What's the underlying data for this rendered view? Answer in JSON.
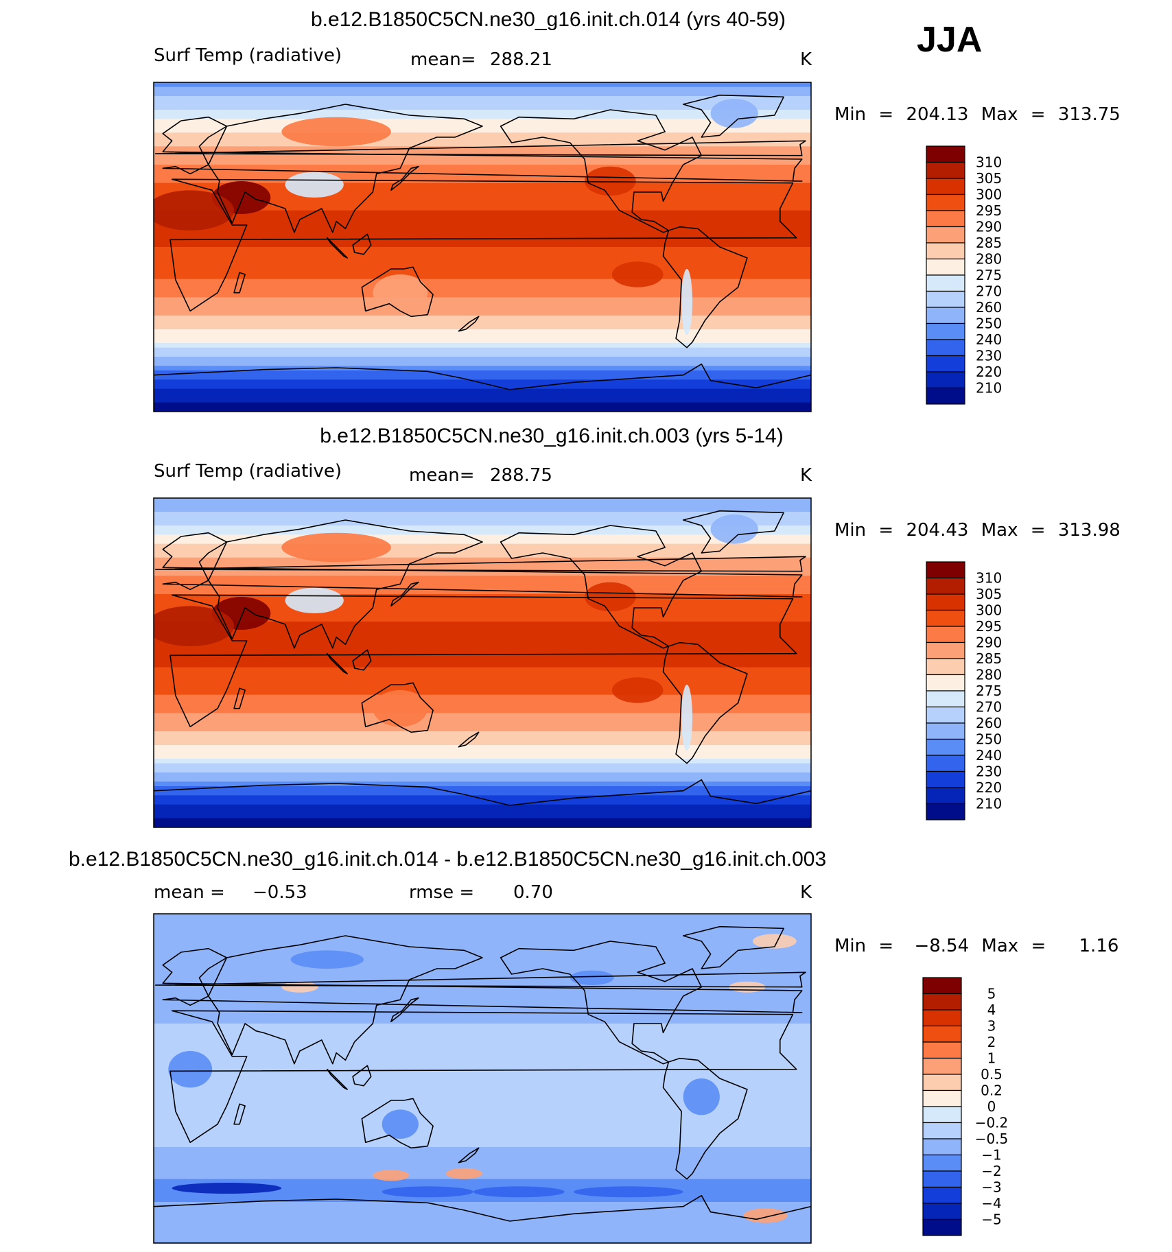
{
  "season": "JJA",
  "chart_data": [
    {
      "type": "heatmap",
      "title": "b.e12.B1850C5CN.ne30_g16.init.ch.014 (yrs 40-59)",
      "variable": "Surf Temp (radiative)",
      "stat_label": "mean=",
      "stat_value": "288.21",
      "units": "K",
      "range_text": {
        "min_label": "Min",
        "min_eq": "=",
        "min": "204.13",
        "max_label": "Max",
        "max_eq": "=",
        "max": "313.75"
      },
      "colorbar": {
        "levels": [
          "310",
          "305",
          "300",
          "295",
          "290",
          "285",
          "280",
          "275",
          "270",
          "260",
          "250",
          "240",
          "230",
          "220",
          "210"
        ],
        "colors": [
          "#7f0000",
          "#b31d00",
          "#d83200",
          "#f04f12",
          "#fb7a45",
          "#fca177",
          "#fdcdb0",
          "#fdf0e2",
          "#d5e9fb",
          "#b6d2fc",
          "#8fb4fa",
          "#5a8df5",
          "#3264ee",
          "#133ed9",
          "#0525b8",
          "#000d8a"
        ]
      },
      "bands": [
        {
          "lat": 90,
          "t": 246
        },
        {
          "lat": 80,
          "t": 263
        },
        {
          "lat": 70,
          "t": 275
        },
        {
          "lat": 60,
          "t": 282
        },
        {
          "lat": 50,
          "t": 288
        },
        {
          "lat": 40,
          "t": 293
        },
        {
          "lat": 30,
          "t": 297
        },
        {
          "lat": 20,
          "t": 300
        },
        {
          "lat": 10,
          "t": 301
        },
        {
          "lat": 0,
          "t": 300
        },
        {
          "lat": -10,
          "t": 298
        },
        {
          "lat": -20,
          "t": 294
        },
        {
          "lat": -30,
          "t": 289
        },
        {
          "lat": -40,
          "t": 283
        },
        {
          "lat": -50,
          "t": 276
        },
        {
          "lat": -55,
          "t": 272
        },
        {
          "lat": -60,
          "t": 261
        },
        {
          "lat": -65,
          "t": 247
        },
        {
          "lat": -70,
          "t": 234
        },
        {
          "lat": -75,
          "t": 222
        },
        {
          "lat": -80,
          "t": 214
        },
        {
          "lat": -85,
          "t": 209
        },
        {
          "lat": -90,
          "t": 207
        }
      ],
      "features": [
        {
          "lon": 88,
          "lat": 34,
          "rx": 16,
          "ry": 7,
          "t": 274
        },
        {
          "lon": 48,
          "lat": 27,
          "rx": 16,
          "ry": 9,
          "t": 311
        },
        {
          "lon": 20,
          "lat": 20,
          "rx": 24,
          "ry": 11,
          "t": 306
        },
        {
          "lon": 265,
          "lat": -15,
          "rx": 14,
          "ry": 7,
          "t": 302
        },
        {
          "lon": -42,
          "lat": 73,
          "rx": 13,
          "ry": 8,
          "t": 252
        },
        {
          "lon": -68,
          "lat": -30,
          "rx": 3,
          "ry": 18,
          "t": 274
        },
        {
          "lon": 135,
          "lat": -25,
          "rx": 15,
          "ry": 10,
          "t": 289
        },
        {
          "lon": -110,
          "lat": 36,
          "rx": 14,
          "ry": 8,
          "t": 303
        },
        {
          "lon": 100,
          "lat": 63,
          "rx": 30,
          "ry": 8,
          "t": 291
        }
      ]
    },
    {
      "type": "heatmap",
      "title": "b.e12.B1850C5CN.ne30_g16.init.ch.003 (yrs 5-14)",
      "variable": "Surf Temp (radiative)",
      "stat_label": "mean=",
      "stat_value": "288.75",
      "units": "K",
      "range_text": {
        "min_label": "Min",
        "min_eq": "=",
        "min": "204.43",
        "max_label": "Max",
        "max_eq": "=",
        "max": "313.98"
      },
      "colorbar": {
        "levels": [
          "310",
          "305",
          "300",
          "295",
          "290",
          "285",
          "280",
          "275",
          "270",
          "260",
          "250",
          "240",
          "230",
          "220",
          "210"
        ],
        "colors": [
          "#7f0000",
          "#b31d00",
          "#d83200",
          "#f04f12",
          "#fb7a45",
          "#fca177",
          "#fdcdb0",
          "#fdf0e2",
          "#d5e9fb",
          "#b6d2fc",
          "#8fb4fa",
          "#5a8df5",
          "#3264ee",
          "#133ed9",
          "#0525b8",
          "#000d8a"
        ]
      },
      "bands": [
        {
          "lat": 90,
          "t": 248
        },
        {
          "lat": 80,
          "t": 264
        },
        {
          "lat": 70,
          "t": 276
        },
        {
          "lat": 60,
          "t": 283
        },
        {
          "lat": 50,
          "t": 289
        },
        {
          "lat": 40,
          "t": 294
        },
        {
          "lat": 30,
          "t": 298
        },
        {
          "lat": 20,
          "t": 301
        },
        {
          "lat": 10,
          "t": 302
        },
        {
          "lat": 0,
          "t": 301
        },
        {
          "lat": -10,
          "t": 298
        },
        {
          "lat": -20,
          "t": 294
        },
        {
          "lat": -30,
          "t": 289
        },
        {
          "lat": -40,
          "t": 283
        },
        {
          "lat": -50,
          "t": 277
        },
        {
          "lat": -55,
          "t": 272
        },
        {
          "lat": -60,
          "t": 262
        },
        {
          "lat": -65,
          "t": 248
        },
        {
          "lat": -70,
          "t": 235
        },
        {
          "lat": -75,
          "t": 223
        },
        {
          "lat": -80,
          "t": 214
        },
        {
          "lat": -85,
          "t": 209
        },
        {
          "lat": -90,
          "t": 207
        }
      ],
      "features": [
        {
          "lon": 88,
          "lat": 34,
          "rx": 16,
          "ry": 7,
          "t": 274
        },
        {
          "lon": 48,
          "lat": 27,
          "rx": 16,
          "ry": 9,
          "t": 312
        },
        {
          "lon": 20,
          "lat": 20,
          "rx": 24,
          "ry": 11,
          "t": 307
        },
        {
          "lon": 265,
          "lat": -15,
          "rx": 14,
          "ry": 7,
          "t": 303
        },
        {
          "lon": -42,
          "lat": 73,
          "rx": 13,
          "ry": 8,
          "t": 254
        },
        {
          "lon": -68,
          "lat": -30,
          "rx": 3,
          "ry": 18,
          "t": 274
        },
        {
          "lon": 135,
          "lat": -25,
          "rx": 15,
          "ry": 10,
          "t": 290
        },
        {
          "lon": -110,
          "lat": 36,
          "rx": 14,
          "ry": 8,
          "t": 304
        },
        {
          "lon": 100,
          "lat": 63,
          "rx": 30,
          "ry": 8,
          "t": 292
        }
      ]
    },
    {
      "type": "heatmap",
      "title": "b.e12.B1850C5CN.ne30_g16.init.ch.014 - b.e12.B1850C5CN.ne30_g16.init.ch.003",
      "variable": "",
      "stat_label": "mean =",
      "stat_value": "−0.53",
      "stat2_label": "rmse =",
      "stat2_value": "0.70",
      "units": "K",
      "range_text": {
        "min_label": "Min",
        "min_eq": "=",
        "min": "−8.54",
        "max_label": "Max",
        "max_eq": "=",
        "max": "1.16"
      },
      "colorbar": {
        "levels": [
          "5",
          "4",
          "3",
          "2",
          "1",
          "0.5",
          "0.2",
          "0",
          "−0.2",
          "−0.5",
          "−1",
          "−2",
          "−3",
          "−4",
          "−5"
        ],
        "colors": [
          "#7f0000",
          "#b31d00",
          "#d83200",
          "#f04f12",
          "#fb7a45",
          "#fca177",
          "#fdcdb0",
          "#fdf0e2",
          "#d5e9fb",
          "#b6d2fc",
          "#8fb4fa",
          "#5a8df5",
          "#3264ee",
          "#133ed9",
          "#0525b8",
          "#000d8a"
        ]
      },
      "bands": [
        {
          "lat": 90,
          "t": -1.0
        },
        {
          "lat": 70,
          "t": -0.8
        },
        {
          "lat": 50,
          "t": -0.7
        },
        {
          "lat": 30,
          "t": -0.5
        },
        {
          "lat": 10,
          "t": -0.4
        },
        {
          "lat": -10,
          "t": -0.4
        },
        {
          "lat": -30,
          "t": -0.4
        },
        {
          "lat": -50,
          "t": -0.7
        },
        {
          "lat": -55,
          "t": -0.9
        },
        {
          "lat": -60,
          "t": -1.6
        },
        {
          "lat": -65,
          "t": -1.3
        },
        {
          "lat": -70,
          "t": -0.9
        },
        {
          "lat": -80,
          "t": -0.6
        },
        {
          "lat": -90,
          "t": -0.6
        }
      ],
      "features": [
        {
          "lon": 40,
          "lat": -60,
          "rx": 30,
          "ry": 3,
          "t": -4.5
        },
        {
          "lon": -100,
          "lat": -62,
          "rx": 30,
          "ry": 3,
          "t": -2.5
        },
        {
          "lon": 150,
          "lat": -62,
          "rx": 25,
          "ry": 3,
          "t": -2.5
        },
        {
          "lon": 200,
          "lat": -62,
          "rx": 25,
          "ry": 3,
          "t": -2.5
        },
        {
          "lon": 130,
          "lat": -53,
          "rx": 10,
          "ry": 3,
          "t": 0.6
        },
        {
          "lon": 170,
          "lat": -52,
          "rx": 10,
          "ry": 3,
          "t": 0.5
        },
        {
          "lon": -25,
          "lat": -75,
          "rx": 12,
          "ry": 4,
          "t": 0.7
        },
        {
          "lon": 80,
          "lat": 50,
          "rx": 10,
          "ry": 3,
          "t": 0.4
        },
        {
          "lon": -20,
          "lat": 75,
          "rx": 12,
          "ry": 4,
          "t": 0.4
        },
        {
          "lon": -35,
          "lat": 50,
          "rx": 10,
          "ry": 3,
          "t": 0.3
        },
        {
          "lon": -120,
          "lat": 55,
          "rx": 12,
          "ry": 4,
          "t": -2.0
        },
        {
          "lon": 95,
          "lat": 65,
          "rx": 20,
          "ry": 5,
          "t": -1.5
        },
        {
          "lon": -60,
          "lat": -10,
          "rx": 10,
          "ry": 10,
          "t": -1.5
        },
        {
          "lon": 20,
          "lat": 5,
          "rx": 12,
          "ry": 10,
          "t": -1.3
        },
        {
          "lon": 135,
          "lat": -25,
          "rx": 10,
          "ry": 8,
          "t": -1.3
        }
      ]
    }
  ]
}
